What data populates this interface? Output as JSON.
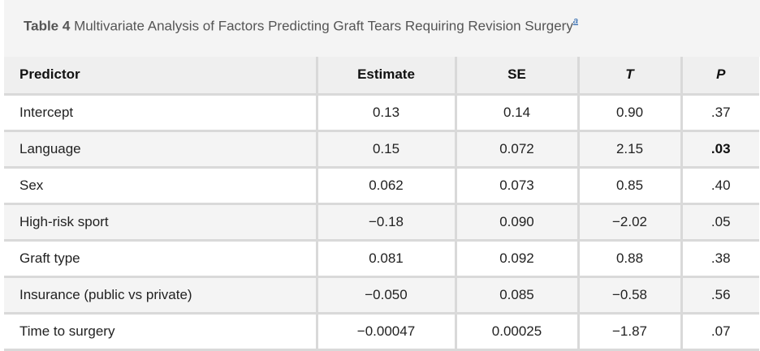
{
  "caption": {
    "label": "Table 4",
    "text": "Multivariate Analysis of Factors Predicting Graft Tears Requiring Revision Surgery",
    "footnote_marker": "a"
  },
  "table": {
    "headers": [
      "Predictor",
      "Estimate",
      "SE",
      "T",
      "P"
    ],
    "rows": [
      {
        "predictor": "Intercept",
        "estimate": "0.13",
        "se": "0.14",
        "t": "0.90",
        "p": ".37"
      },
      {
        "predictor": "Language",
        "estimate": "0.15",
        "se": "0.072",
        "t": "2.15",
        "p": ".03"
      },
      {
        "predictor": "Sex",
        "estimate": "0.062",
        "se": "0.073",
        "t": "0.85",
        "p": ".40"
      },
      {
        "predictor": "High-risk sport",
        "estimate": "−0.18",
        "se": "0.090",
        "t": "−2.02",
        "p": ".05"
      },
      {
        "predictor": "Graft type",
        "estimate": "0.081",
        "se": "0.092",
        "t": "0.88",
        "p": ".38"
      },
      {
        "predictor": "Insurance (public vs private)",
        "estimate": "−0.050",
        "se": "0.085",
        "t": "−0.58",
        "p": ".56"
      },
      {
        "predictor": "Time to surgery",
        "estimate": "−0.00047",
        "se": "0.00025",
        "t": "−1.87",
        "p": ".07"
      }
    ]
  }
}
